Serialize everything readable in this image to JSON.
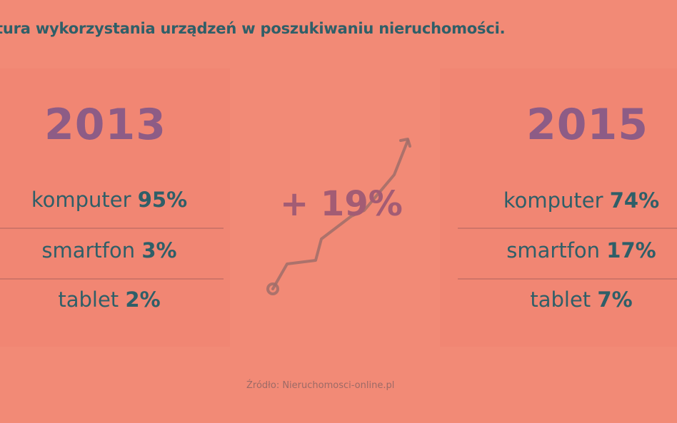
{
  "title": "tura wykorzystania urządzeń w poszukiwaniu nieruchomości.",
  "years": {
    "left": {
      "year": "2013",
      "items": [
        {
          "label": "komputer",
          "value": "95%"
        },
        {
          "label": "smartfon",
          "value": "3%"
        },
        {
          "label": "tablet",
          "value": "2%"
        }
      ]
    },
    "right": {
      "year": "2015",
      "items": [
        {
          "label": "komputer",
          "value": "74%"
        },
        {
          "label": "smartfon",
          "value": "17%"
        },
        {
          "label": "tablet",
          "value": "7%"
        }
      ]
    }
  },
  "growth": "+ 19%",
  "trend_icon": "upward-trend-arrow-icon",
  "source": "Źródło: Nieruchomosci-online.pl",
  "colors": {
    "background": "#f28a76",
    "text": "#2f5f68",
    "year": "#8d5c86",
    "growth": "#a35c74"
  }
}
